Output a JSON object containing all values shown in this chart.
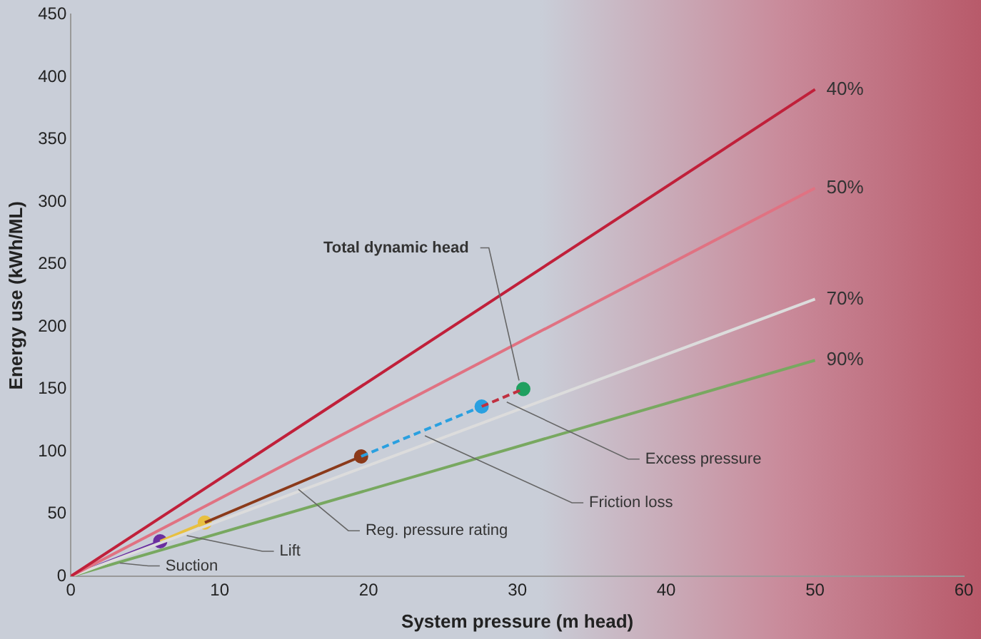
{
  "chart_data": {
    "type": "line",
    "xlabel": "System pressure (m head)",
    "ylabel": "Energy use (kWh/ML)",
    "xlim": [
      0,
      60
    ],
    "xticks": [
      0,
      10,
      20,
      30,
      40,
      50,
      60
    ],
    "ylim": [
      0,
      450
    ],
    "yticks": [
      0,
      50,
      100,
      150,
      200,
      250,
      300,
      350,
      400,
      450
    ],
    "grid": false,
    "legend": false,
    "series": [
      {
        "name": "40%",
        "color": "#c0203a",
        "x": [
          0,
          50
        ],
        "values": [
          0,
          390
        ]
      },
      {
        "name": "50%",
        "color": "#e07282",
        "x": [
          0,
          50
        ],
        "values": [
          0,
          311
        ]
      },
      {
        "name": "70%",
        "color": "#dcdcdc",
        "x": [
          0,
          50
        ],
        "values": [
          0,
          222
        ]
      },
      {
        "name": "90%",
        "color": "#78a860",
        "x": [
          0,
          50
        ],
        "values": [
          0,
          173
        ]
      },
      {
        "color": "#6a2ea0",
        "x": [
          0,
          6
        ],
        "values": [
          0,
          28
        ]
      },
      {
        "color": "#e8c040",
        "x": [
          6,
          9
        ],
        "values": [
          28,
          43
        ]
      },
      {
        "color": "#8b3a1a",
        "x": [
          9,
          19.5
        ],
        "values": [
          43,
          96
        ]
      },
      {
        "color": "#2aa0e0",
        "x": [
          19.5,
          27.6
        ],
        "values": [
          96,
          136
        ],
        "line_style": "dashed"
      },
      {
        "color": "#c03040",
        "x": [
          27.6,
          30.4
        ],
        "values": [
          136,
          150
        ],
        "line_style": "dashed"
      },
      {
        "type": "scatter",
        "x": [
          6,
          9,
          19.5,
          27.6,
          30.4
        ],
        "values": [
          28,
          43,
          96,
          136,
          150
        ],
        "colors": [
          "#6a2ea0",
          "#e8c040",
          "#8b3a1a",
          "#2aa0e0",
          "#20a060"
        ]
      }
    ],
    "annotations": [
      {
        "text": "Total dynamic head",
        "x": 30.4,
        "y": 150
      },
      {
        "text": "Excess pressure",
        "x": 29,
        "y": 143
      },
      {
        "text": "Friction loss",
        "x": 23.5,
        "y": 116
      },
      {
        "text": "Reg. pressure rating",
        "x": 15,
        "y": 73
      },
      {
        "text": "Lift",
        "x": 7.5,
        "y": 36
      },
      {
        "text": "Suction",
        "x": 3,
        "y": 14
      }
    ]
  }
}
